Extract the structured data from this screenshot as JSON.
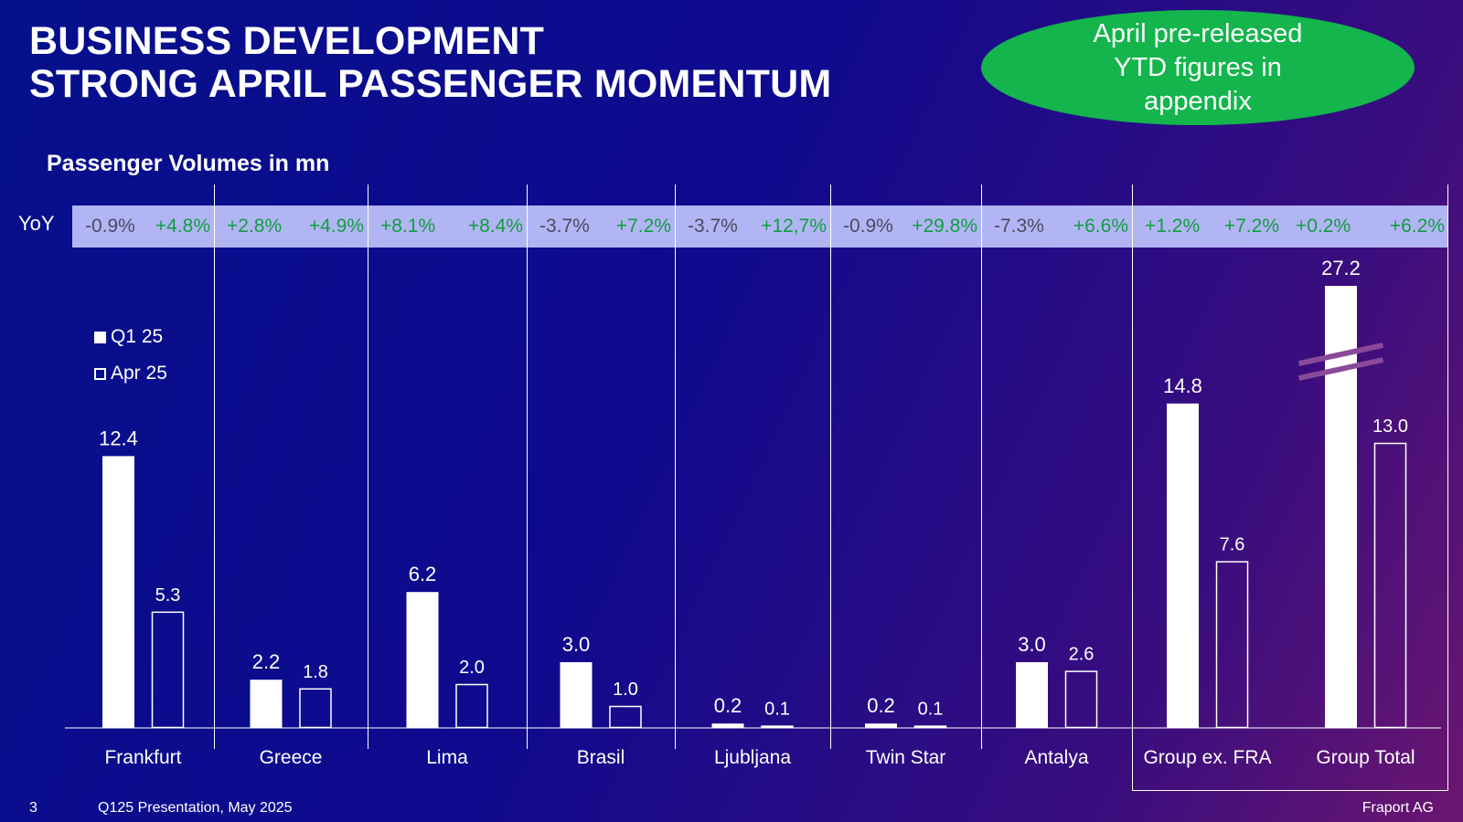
{
  "header": {
    "title_line1": "BUSINESS DEVELOPMENT",
    "title_line2": "STRONG APRIL PASSENGER MOMENTUM",
    "callout": "April pre-released YTD figures in appendix"
  },
  "subtitle": "Passenger Volumes in mn",
  "yoy_label": "YoY",
  "legend": {
    "q1": "Q1 25",
    "apr": "Apr 25"
  },
  "footer": {
    "page": "3",
    "presentation": "Q125 Presentation, May 2025",
    "company": "Fraport AG"
  },
  "colors": {
    "yoy_negative_text": "#4a4a62",
    "yoy_positive_text": "#119d42",
    "band": "#b2b5f3",
    "callout": "#13b54c",
    "break_mark": "#8a4a9a"
  },
  "chart_data": {
    "type": "bar",
    "title": "Passenger Volumes in mn",
    "categories": [
      "Frankfurt",
      "Greece",
      "Lima",
      "Brasil",
      "Ljubljana",
      "Twin Star",
      "Antalya",
      "Group ex. FRA",
      "Group Total"
    ],
    "series": [
      {
        "name": "Q1 25",
        "values": [
          12.4,
          2.2,
          6.2,
          3.0,
          0.2,
          0.2,
          3.0,
          14.8,
          27.2
        ],
        "labels": [
          "12.4",
          "2.2",
          "6.2",
          "3.0",
          "0.2",
          "0.2",
          "3.0",
          "14.8",
          "27.2"
        ],
        "style": "filled"
      },
      {
        "name": "Apr 25",
        "values": [
          5.3,
          1.8,
          2.0,
          1.0,
          0.1,
          0.1,
          2.6,
          7.6,
          13.0
        ],
        "labels": [
          "5.3",
          "1.8",
          "2.0",
          "1.0",
          "0.1",
          "0.1",
          "2.6",
          "7.6",
          "13.0"
        ],
        "style": "outline"
      }
    ],
    "yoy": {
      "Q1 25": [
        "-0.9%",
        "+2.8%",
        "+8.1%",
        "-3.7%",
        "-3.7%",
        "-0.9%",
        "-7.3%",
        "+1.2%",
        "+0.2%"
      ],
      "Apr 25": [
        "+4.8%",
        "+4.9%",
        "+8.4%",
        "+7.2%",
        "+12,7%",
        "+29.8%",
        "+6.6%",
        "+7.2%",
        "+6.2%"
      ]
    },
    "axis_break": "Group Total Q1 25",
    "legend_position": "top-left",
    "grid": false
  }
}
